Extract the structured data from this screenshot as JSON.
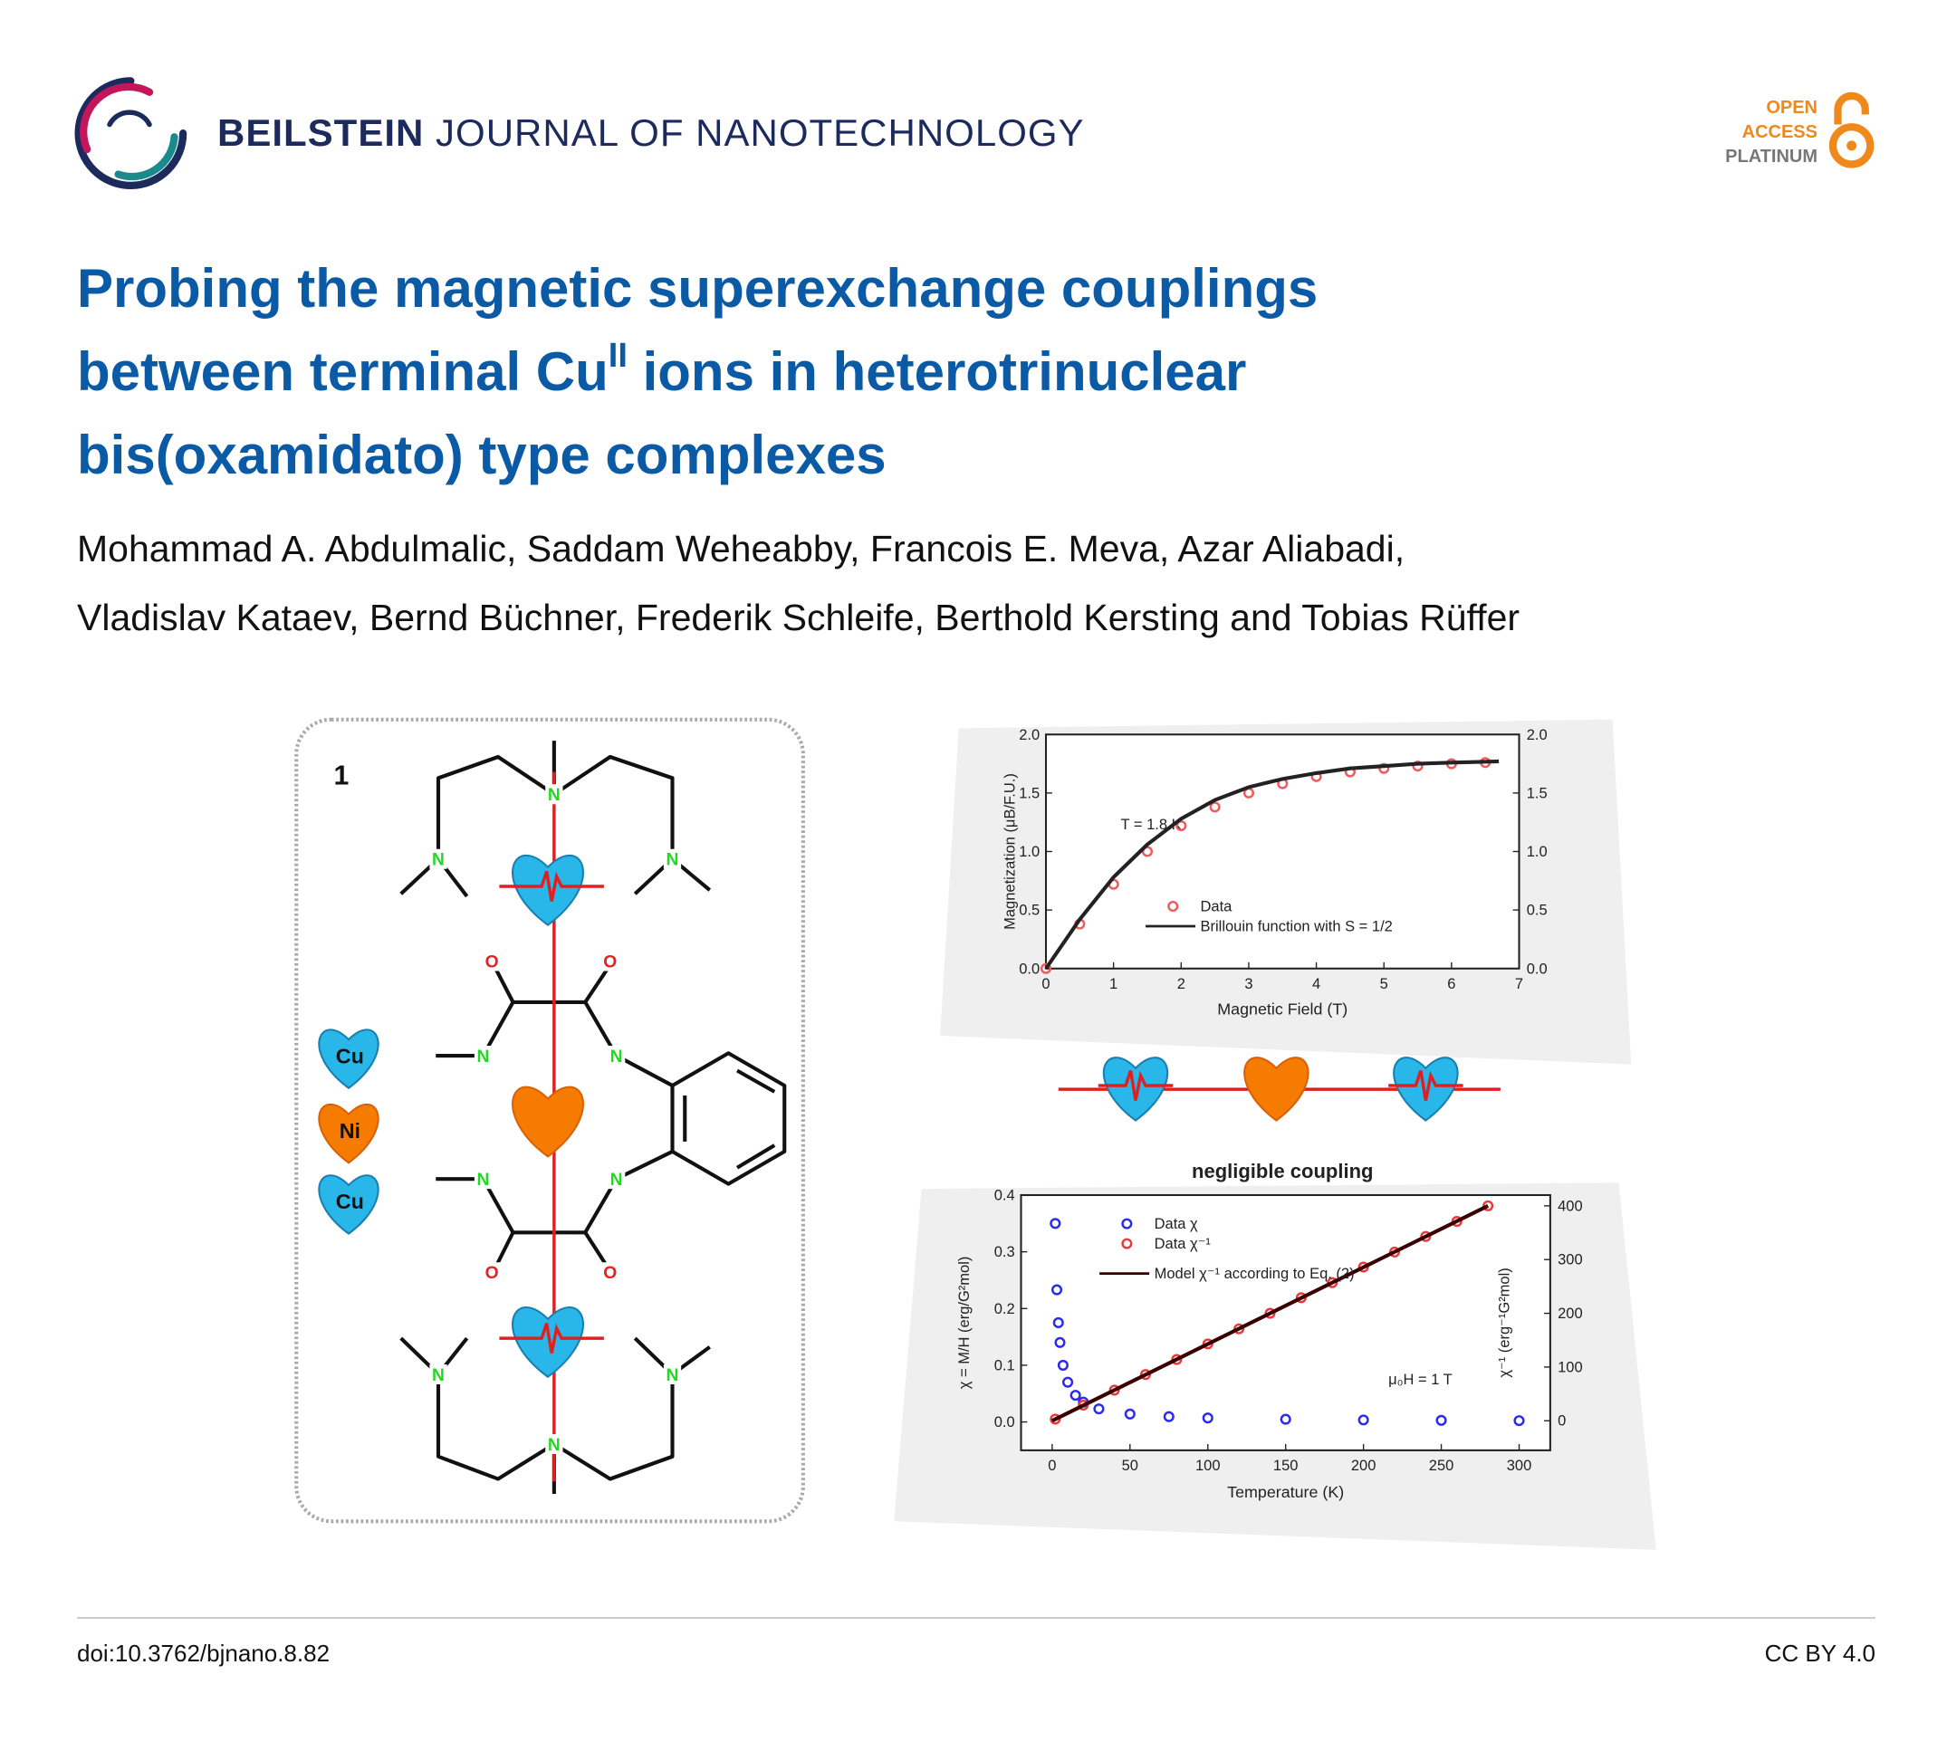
{
  "header": {
    "journal_bold": "BEILSTEIN",
    "journal_rest": " JOURNAL OF NANOTECHNOLOGY",
    "badge": [
      "OPEN",
      "ACCESS",
      "PLATINUM"
    ]
  },
  "title": {
    "line1": "Probing the magnetic superexchange couplings",
    "line2_before": "between terminal Cu",
    "line2_sup": "II",
    "line2_after": " ions in heterotrinuclear",
    "line3": "bis(oxamidato) type complexes"
  },
  "authors": [
    "Mohammad A. Abdulmalic, Saddam Weheabby, Francois E. Meva, Azar Aliabadi,",
    "Vladislav Kataev, Bernd Büchner, Frederik Schleife, Berthold Kersting and Tobias Rüffer"
  ],
  "figure": {
    "molecule": {
      "label": "1",
      "atoms": [
        "N",
        "N",
        "N",
        "N",
        "N",
        "N",
        "N",
        "N",
        "N",
        "N",
        "O",
        "O",
        "O",
        "O"
      ],
      "legend": [
        "Cu",
        "Ni",
        "Cu"
      ]
    },
    "caption_middle": "negligible coupling",
    "charts": [
      {
        "type": "scatter",
        "xlabel": "Magnetic Field (T)",
        "ylabel": "Magnetization (μB/F.U.)",
        "annotation": "T = 1.8 K",
        "xlim": [
          0,
          7
        ],
        "xticks": [
          0,
          1,
          2,
          3,
          4,
          5,
          6,
          7
        ],
        "ylim": [
          0,
          2
        ],
        "yticks": [
          {
            "value": 0,
            "label": "0.0"
          },
          0.5,
          {
            "value": 1,
            "label": "1.0"
          },
          1.5,
          {
            "value": 2,
            "label": "2.0"
          }
        ],
        "y2lim": [
          0,
          2
        ],
        "y2ticks": [
          {
            "value": 0,
            "label": "0.0"
          },
          0.5,
          {
            "value": 1,
            "label": "1.0"
          },
          1.5,
          {
            "value": 2,
            "label": "2.0"
          }
        ],
        "series": [
          {
            "name": "Data",
            "color": "#f05a5a",
            "marker": "circle",
            "x": [
              0,
              0.5,
              1,
              1.5,
              2,
              2.5,
              3,
              3.5,
              4,
              4.5,
              5,
              5.5,
              6,
              6.5
            ],
            "values": [
              0,
              0.38,
              0.72,
              1.0,
              1.22,
              1.38,
              1.5,
              1.58,
              1.64,
              1.68,
              1.71,
              1.73,
              1.75,
              1.76
            ]
          },
          {
            "name": "Brillouin function with S = 1/2",
            "color": "#222222",
            "x": [
              0,
              0.5,
              1,
              1.5,
              2,
              2.5,
              3,
              3.5,
              4,
              4.5,
              5,
              5.5,
              6,
              6.7
            ],
            "values": [
              0,
              0.42,
              0.78,
              1.06,
              1.28,
              1.44,
              1.55,
              1.62,
              1.67,
              1.71,
              1.73,
              1.75,
              1.76,
              1.77
            ]
          }
        ]
      },
      {
        "type": "scatter",
        "xlabel": "Temperature (K)",
        "ylabel": "χ = M/H (erg/G²mol)",
        "y2label": "χ⁻¹ (erg⁻¹G²mol)",
        "annotation": "μ₀H = 1 T",
        "xlim": [
          -20,
          320
        ],
        "xticks": [
          0,
          50,
          100,
          150,
          200,
          250,
          300
        ],
        "ylim": [
          -0.05,
          0.4
        ],
        "yticks": [
          {
            "value": 0,
            "label": "0.0"
          },
          0.1,
          0.2,
          0.3,
          0.4
        ],
        "y2lim": [
          -55,
          420
        ],
        "y2ticks": [
          0,
          100,
          200,
          300,
          400
        ],
        "series": [
          {
            "name": "Data χ",
            "color": "#2a2af0",
            "marker": "circle",
            "x": [
              2,
              3,
              4,
              5,
              7,
              10,
              15,
              20,
              30,
              50,
              75,
              100,
              150,
              200,
              250,
              300
            ],
            "values": [
              0.35,
              0.233,
              0.175,
              0.14,
              0.1,
              0.07,
              0.047,
              0.035,
              0.023,
              0.014,
              0.0093,
              0.007,
              0.0047,
              0.0035,
              0.0028,
              0.0023
            ]
          },
          {
            "name": "Data χ⁻¹",
            "color": "#e83a3a",
            "marker": "circle",
            "axis": "y2",
            "x": [
              2,
              20,
              40,
              60,
              80,
              100,
              120,
              140,
              160,
              180,
              200,
              220,
              240,
              260,
              280
            ],
            "values": [
              3,
              29,
              57,
              86,
              114,
              143,
              171,
              200,
              229,
              257,
              286,
              314,
              343,
              371,
              400
            ]
          },
          {
            "name": "Model χ⁻¹ according to Eq. (2)",
            "color": "#3a0000",
            "axis": "y2",
            "x": [
              0,
              280
            ],
            "values": [
              0,
              400
            ]
          }
        ]
      }
    ]
  },
  "footer": {
    "doi": "doi:10.3762/bjnano.8.82",
    "license": "CC BY 4.0"
  }
}
